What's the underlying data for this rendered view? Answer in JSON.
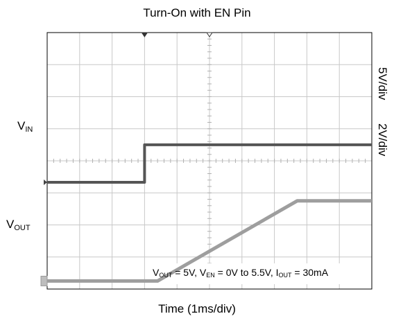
{
  "chart_data": {
    "type": "line",
    "title": "Turn-On with EN Pin",
    "xlabel": "Time (1ms/div)",
    "grid": true,
    "divisions": {
      "x": 10,
      "y": 8
    },
    "series": [
      {
        "name": "VIN",
        "scale": "5V/div",
        "color": "#555555",
        "x_div": [
          0,
          3.0,
          3.0,
          10
        ],
        "y_div": [
          3.33,
          3.33,
          4.5,
          4.5
        ]
      },
      {
        "name": "VOUT",
        "scale": "2V/div",
        "color": "#9e9e9e",
        "x_div": [
          0,
          3.4,
          7.7,
          10
        ],
        "y_div": [
          0.25,
          0.25,
          2.75,
          2.75
        ]
      }
    ],
    "labels": {
      "vin_main": "V",
      "vin_sub": "IN",
      "vout_main": "V",
      "vout_sub": "OUT",
      "scale_vin": "5V/div",
      "scale_vout": "2V/div"
    },
    "caption": {
      "p1": "V",
      "s1": "OUT",
      "t1": " = 5V, V",
      "s2": "EN",
      "t2": " = 0V to 5.5V, I",
      "s3": "OUT",
      "t3": " = 30mA"
    }
  }
}
